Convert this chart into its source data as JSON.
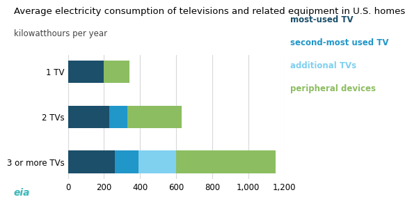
{
  "title": "Average electricity consumption of televisions and related equipment in U.S. homes",
  "subtitle": "kilowatthours per year",
  "categories": [
    "1 TV",
    "2 TVs",
    "3 or more TVs"
  ],
  "series": {
    "most_used_tv": [
      200,
      230,
      260
    ],
    "second_most_tv": [
      0,
      100,
      130
    ],
    "additional_tvs": [
      0,
      0,
      210
    ],
    "peripheral_devices": [
      140,
      300,
      550
    ]
  },
  "colors": {
    "most_used_tv": "#1b4f6a",
    "second_most_tv": "#2196c8",
    "additional_tvs": "#80d0f0",
    "peripheral_devices": "#8cbd60"
  },
  "legend_labels": [
    "most-used TV",
    "second-most used TV",
    "additional TVs",
    "peripheral devices"
  ],
  "legend_colors": [
    "#1b4f6a",
    "#2196c8",
    "#80d0f0",
    "#8cbd60"
  ],
  "xlim": [
    0,
    1200
  ],
  "xticks": [
    0,
    200,
    400,
    600,
    800,
    1000,
    1200
  ],
  "xtick_labels": [
    "0",
    "200",
    "400",
    "600",
    "800",
    "1,000",
    "1,200"
  ],
  "bar_height": 0.5,
  "title_fontsize": 9.5,
  "subtitle_fontsize": 8.5,
  "tick_fontsize": 8.5,
  "legend_fontsize": 8.5,
  "background_color": "#ffffff",
  "grid_color": "#d8d8d8",
  "eia_color": "#3bb8b8"
}
